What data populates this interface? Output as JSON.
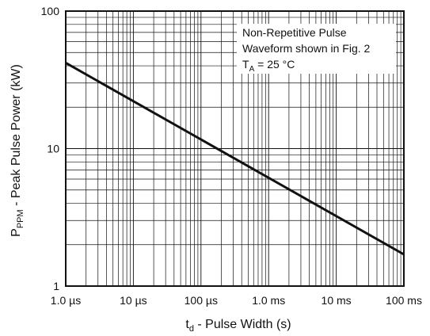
{
  "chart_data": {
    "type": "line",
    "x_scale": "log",
    "y_scale": "log",
    "x_unit": "s",
    "xlim": [
      1e-06,
      0.1
    ],
    "ylim": [
      1,
      100
    ],
    "grid": true,
    "x_tick_values": [
      1e-06,
      1e-05,
      0.0001,
      0.001,
      0.01,
      0.1
    ],
    "x_tick_labels": [
      "1.0 µs",
      "10 µs",
      "100 µs",
      "1.0 ms",
      "10 ms",
      "100 ms"
    ],
    "y_tick_values": [
      1,
      10,
      100
    ],
    "y_tick_labels": [
      "1",
      "10",
      "100"
    ],
    "xlabel": {
      "main": "t",
      "sub": "d",
      "rest": " - Pulse Width (s)"
    },
    "ylabel": {
      "main": "P",
      "sub": "PPM",
      "rest": " - Peak Pulse Power (kW)"
    },
    "annotation": {
      "line1": "Non-Repetitive Pulse",
      "line2": "Waveform shown in Fig. 2",
      "line3_main": "T",
      "line3_sub": "A",
      "line3_rest": " = 25 °C"
    },
    "series": [
      {
        "x": [
          1e-06,
          0.1
        ],
        "y": [
          42,
          1.7
        ]
      }
    ],
    "colors": {
      "line": "#111111",
      "grid": "#111111",
      "background": "#ffffff"
    }
  }
}
